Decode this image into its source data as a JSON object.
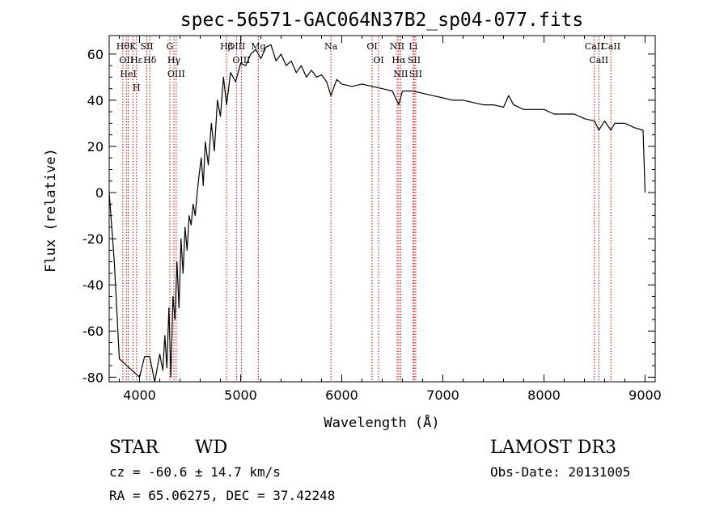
{
  "chart_data": {
    "type": "line",
    "title": "spec-56571-GAC064N37B2_sp04-077.fits",
    "xlabel": "Wavelength (Å)",
    "ylabel": "Flux (relative)",
    "xlim": [
      3700,
      9100
    ],
    "ylim": [
      -82,
      68
    ],
    "xticks": [
      4000,
      5000,
      6000,
      7000,
      8000,
      9000
    ],
    "yticks": [
      -80,
      -60,
      -40,
      -20,
      0,
      20,
      40,
      60
    ],
    "series": [
      {
        "name": "flux",
        "x": [
          3700,
          3750,
          3800,
          3850,
          3900,
          3950,
          4000,
          4050,
          4100,
          4150,
          4200,
          4230,
          4250,
          4270,
          4290,
          4310,
          4330,
          4350,
          4370,
          4390,
          4410,
          4430,
          4450,
          4470,
          4490,
          4510,
          4530,
          4550,
          4570,
          4590,
          4610,
          4630,
          4650,
          4680,
          4710,
          4740,
          4770,
          4800,
          4830,
          4861,
          4900,
          4950,
          5000,
          5050,
          5100,
          5150,
          5200,
          5250,
          5300,
          5350,
          5400,
          5450,
          5500,
          5550,
          5600,
          5650,
          5700,
          5750,
          5800,
          5850,
          5893,
          5950,
          6000,
          6100,
          6200,
          6300,
          6400,
          6500,
          6563,
          6600,
          6700,
          6800,
          6900,
          7000,
          7100,
          7200,
          7300,
          7400,
          7500,
          7600,
          7650,
          7700,
          7800,
          7900,
          8000,
          8100,
          8200,
          8300,
          8400,
          8500,
          8542,
          8600,
          8662,
          8700,
          8800,
          8900,
          8980,
          9000
        ],
        "y": [
          0,
          -30,
          -72,
          -74,
          -76,
          -78,
          -80,
          -71,
          -71,
          -82,
          -70,
          -77,
          -62,
          -76,
          -50,
          -80,
          -45,
          -55,
          -30,
          -50,
          -20,
          -35,
          -15,
          -25,
          -10,
          -14,
          -5,
          -10,
          0,
          8,
          15,
          3,
          22,
          12,
          30,
          18,
          40,
          33,
          50,
          38,
          52,
          48,
          56,
          55,
          60,
          62,
          58,
          63,
          64,
          57,
          60,
          55,
          57,
          52,
          55,
          50,
          53,
          50,
          51,
          48,
          42,
          49,
          47,
          46,
          47,
          46,
          45,
          44,
          38,
          44,
          44,
          43,
          42,
          41,
          40,
          40,
          39,
          38,
          38,
          37,
          42,
          38,
          36,
          36,
          36,
          34,
          34,
          34,
          32,
          31,
          27,
          31,
          27,
          30,
          30,
          28,
          27,
          0
        ]
      }
    ],
    "lines": [
      {
        "x": 3835,
        "labels": [
          "Hθ"
        ]
      },
      {
        "x": 3870,
        "labels": [
          "OII"
        ]
      },
      {
        "x": 3889,
        "labels": [
          "HeI"
        ]
      },
      {
        "x": 3934,
        "labels": [
          "K"
        ]
      },
      {
        "x": 3970,
        "labels": [
          "Hε",
          "H"
        ]
      },
      {
        "x": 4072,
        "labels": [
          "SII"
        ]
      },
      {
        "x": 4102,
        "labels": [
          "Hδ"
        ]
      },
      {
        "x": 4300,
        "labels": [
          "G"
        ]
      },
      {
        "x": 4340,
        "labels": [
          "Hγ"
        ]
      },
      {
        "x": 4363,
        "labels": [
          "OIII"
        ]
      },
      {
        "x": 4861,
        "labels": [
          "Hβ"
        ]
      },
      {
        "x": 4959,
        "labels": [
          "OIII"
        ]
      },
      {
        "x": 5007,
        "labels": [
          "OIII"
        ]
      },
      {
        "x": 5175,
        "labels": [
          "Mg"
        ]
      },
      {
        "x": 5893,
        "labels": [
          "Na"
        ]
      },
      {
        "x": 6300,
        "labels": [
          "OI"
        ]
      },
      {
        "x": 6364,
        "labels": [
          "OI"
        ]
      },
      {
        "x": 6548,
        "labels": [
          "NII"
        ]
      },
      {
        "x": 6563,
        "labels": [
          "Hα"
        ]
      },
      {
        "x": 6583,
        "labels": [
          "NII"
        ]
      },
      {
        "x": 6707,
        "labels": [
          "Li"
        ]
      },
      {
        "x": 6716,
        "labels": [
          "SII"
        ]
      },
      {
        "x": 6731,
        "labels": [
          "SII"
        ]
      },
      {
        "x": 8498,
        "labels": [
          "CaII"
        ]
      },
      {
        "x": 8542,
        "labels": [
          "CaII"
        ]
      },
      {
        "x": 8662,
        "labels": [
          "CaII"
        ]
      }
    ]
  },
  "info": {
    "class": "STAR",
    "subclass": "WD",
    "survey": "LAMOST DR3",
    "cz": "cz = -60.6 ± 14.7 km/s",
    "obs_date": "Obs-Date: 20131005",
    "coords": "RA =  65.06275, DEC =  37.42248"
  }
}
